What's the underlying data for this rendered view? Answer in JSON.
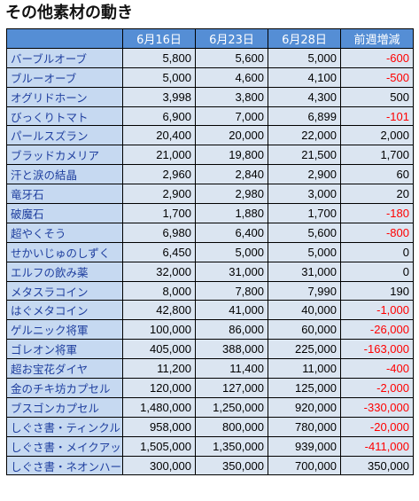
{
  "title": "その他素材の動き",
  "headers": [
    "",
    "6月16日",
    "6月23日",
    "6月28日",
    "前週増減"
  ],
  "colors": {
    "header_bg": "#558ed5",
    "name_bg": "#c6d9f1",
    "value_bg": "#dbe5f1",
    "negative": "#ff0000",
    "name_text": "#1f3f9f"
  },
  "rows": [
    {
      "name": "バーブルオーブ",
      "v1": "5,800",
      "v2": "5,600",
      "v3": "5,000",
      "diff": "-600",
      "neg": true
    },
    {
      "name": "ブルーオーブ",
      "v1": "5,000",
      "v2": "4,600",
      "v3": "4,100",
      "diff": "-500",
      "neg": true
    },
    {
      "name": "オグリドホーン",
      "v1": "3,998",
      "v2": "3,800",
      "v3": "4,300",
      "diff": "500",
      "neg": false
    },
    {
      "name": "びっくりトマト",
      "v1": "6,900",
      "v2": "7,000",
      "v3": "6,899",
      "diff": "-101",
      "neg": true
    },
    {
      "name": "パールスズラン",
      "v1": "20,400",
      "v2": "20,000",
      "v3": "22,000",
      "diff": "2,000",
      "neg": false
    },
    {
      "name": "ブラッドカメリア",
      "v1": "21,000",
      "v2": "19,800",
      "v3": "21,500",
      "diff": "1,700",
      "neg": false
    },
    {
      "name": "汗と涙の結晶",
      "v1": "2,960",
      "v2": "2,840",
      "v3": "2,900",
      "diff": "60",
      "neg": false
    },
    {
      "name": "竜牙石",
      "v1": "2,900",
      "v2": "2,980",
      "v3": "3,000",
      "diff": "20",
      "neg": false
    },
    {
      "name": "破魔石",
      "v1": "1,700",
      "v2": "1,880",
      "v3": "1,700",
      "diff": "-180",
      "neg": true
    },
    {
      "name": "超やくそう",
      "v1": "6,980",
      "v2": "6,400",
      "v3": "5,600",
      "diff": "-800",
      "neg": true
    },
    {
      "name": "せかいじゅのしずく",
      "v1": "6,450",
      "v2": "5,000",
      "v3": "5,000",
      "diff": "0",
      "neg": false
    },
    {
      "name": "エルフの飲み薬",
      "v1": "32,000",
      "v2": "31,000",
      "v3": "31,000",
      "diff": "0",
      "neg": false
    },
    {
      "name": "メタスラコイン",
      "v1": "8,000",
      "v2": "7,800",
      "v3": "7,990",
      "diff": "190",
      "neg": false
    },
    {
      "name": "はぐメタコイン",
      "v1": "42,800",
      "v2": "41,000",
      "v3": "40,000",
      "diff": "-1,000",
      "neg": true
    },
    {
      "name": "ゲルニック将軍",
      "v1": "100,000",
      "v2": "86,000",
      "v3": "60,000",
      "diff": "-26,000",
      "neg": true
    },
    {
      "name": "ゴレオン将軍",
      "v1": "405,000",
      "v2": "388,000",
      "v3": "225,000",
      "diff": "-163,000",
      "neg": true
    },
    {
      "name": "超お宝花ダイヤ",
      "v1": "11,200",
      "v2": "11,400",
      "v3": "11,000",
      "diff": "-400",
      "neg": true
    },
    {
      "name": "金のチキ坊カプセル",
      "v1": "120,000",
      "v2": "127,000",
      "v3": "125,000",
      "diff": "-2,000",
      "neg": true
    },
    {
      "name": "ブスゴンカプセル",
      "v1": "1,480,000",
      "v2": "1,250,000",
      "v3": "920,000",
      "diff": "-330,000",
      "neg": true
    },
    {
      "name": "しぐさ書・ティンクル",
      "v1": "958,000",
      "v2": "800,000",
      "v3": "780,000",
      "diff": "-20,000",
      "neg": true
    },
    {
      "name": "しぐさ書・メイクアップ",
      "v1": "1,505,000",
      "v2": "1,350,000",
      "v3": "939,000",
      "diff": "-411,000",
      "neg": true
    },
    {
      "name": "しぐさ書・ネオンハート",
      "v1": "300,000",
      "v2": "350,000",
      "v3": "700,000",
      "diff": "350,000",
      "neg": false
    }
  ]
}
